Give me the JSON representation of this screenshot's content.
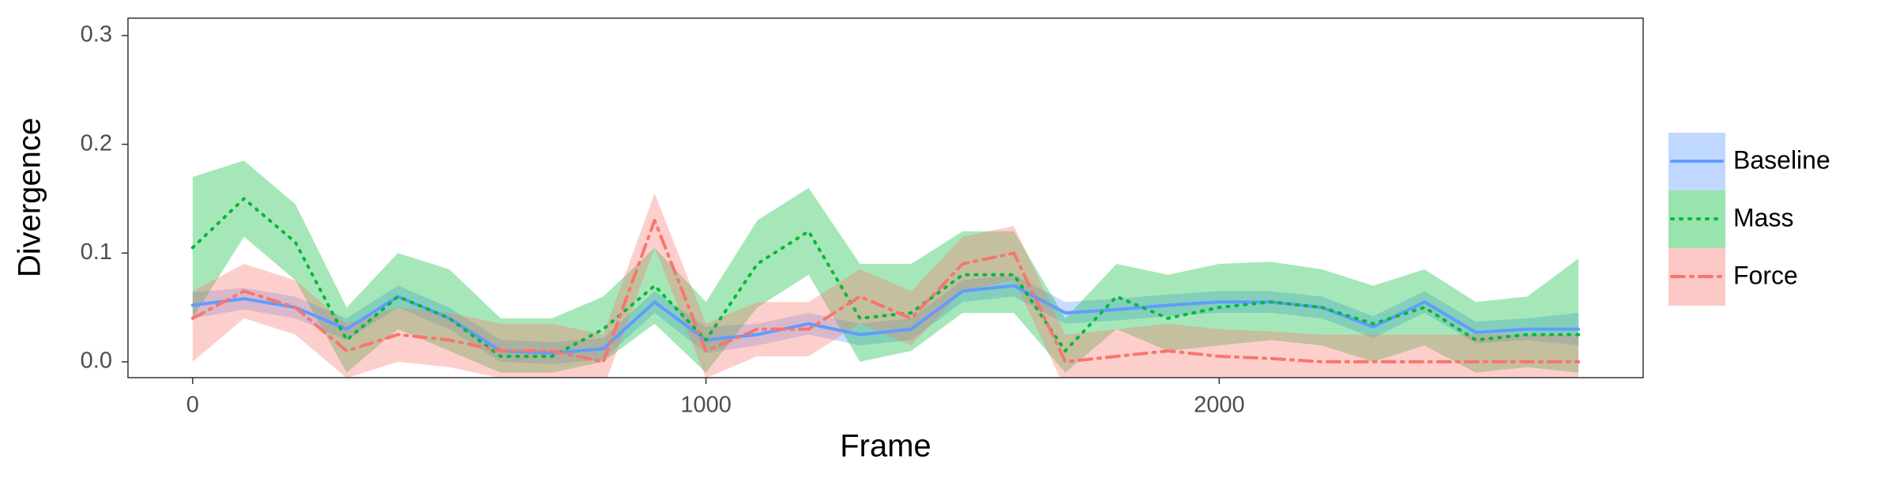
{
  "chart_data": {
    "type": "line",
    "xlabel": "Frame",
    "ylabel": "Divergence",
    "x": [
      0,
      100,
      200,
      300,
      400,
      500,
      600,
      700,
      800,
      900,
      1000,
      1100,
      1200,
      1300,
      1400,
      1500,
      1600,
      1700,
      1800,
      1900,
      2000,
      2100,
      2200,
      2300,
      2400,
      2500,
      2600,
      2700
    ],
    "series": [
      {
        "name": "Baseline",
        "color": "#619CFF",
        "linestyle": "solid",
        "values": [
          0.052,
          0.058,
          0.05,
          0.03,
          0.06,
          0.04,
          0.01,
          0.008,
          0.012,
          0.055,
          0.02,
          0.025,
          0.035,
          0.025,
          0.03,
          0.065,
          0.07,
          0.045,
          0.048,
          0.052,
          0.055,
          0.055,
          0.05,
          0.032,
          0.055,
          0.027,
          0.03,
          0.03
        ],
        "lower": [
          0.04,
          0.048,
          0.04,
          0.02,
          0.05,
          0.03,
          0.0,
          -0.002,
          0.002,
          0.045,
          0.008,
          0.015,
          0.025,
          0.015,
          0.02,
          0.055,
          0.06,
          0.035,
          0.038,
          0.042,
          0.045,
          0.045,
          0.04,
          0.022,
          0.045,
          0.017,
          0.02,
          0.015
        ],
        "upper": [
          0.064,
          0.068,
          0.06,
          0.04,
          0.07,
          0.05,
          0.02,
          0.018,
          0.022,
          0.065,
          0.032,
          0.035,
          0.045,
          0.035,
          0.04,
          0.075,
          0.08,
          0.055,
          0.058,
          0.062,
          0.065,
          0.065,
          0.06,
          0.042,
          0.065,
          0.037,
          0.04,
          0.045
        ]
      },
      {
        "name": "Mass",
        "color": "#00BA38",
        "linestyle": "dotted",
        "values": [
          0.105,
          0.15,
          0.11,
          0.02,
          0.06,
          0.04,
          0.005,
          0.005,
          0.03,
          0.07,
          0.02,
          0.09,
          0.12,
          0.04,
          0.045,
          0.08,
          0.08,
          0.01,
          0.06,
          0.04,
          0.05,
          0.055,
          0.05,
          0.035,
          0.05,
          0.02,
          0.025,
          0.025
        ],
        "lower": [
          0.04,
          0.115,
          0.075,
          -0.01,
          0.03,
          0.01,
          -0.01,
          -0.01,
          0.0,
          0.035,
          -0.01,
          0.05,
          0.08,
          0.0,
          0.01,
          0.045,
          0.045,
          -0.01,
          0.03,
          0.01,
          0.015,
          0.02,
          0.015,
          0.0,
          0.015,
          -0.01,
          -0.005,
          -0.01
        ],
        "upper": [
          0.17,
          0.185,
          0.145,
          0.05,
          0.1,
          0.085,
          0.04,
          0.04,
          0.06,
          0.105,
          0.055,
          0.13,
          0.16,
          0.09,
          0.09,
          0.12,
          0.12,
          0.04,
          0.09,
          0.08,
          0.09,
          0.092,
          0.085,
          0.07,
          0.085,
          0.055,
          0.06,
          0.095
        ]
      },
      {
        "name": "Force",
        "color": "#F8766D",
        "linestyle": "dashdot",
        "values": [
          0.04,
          0.065,
          0.05,
          0.01,
          0.025,
          0.02,
          0.01,
          0.01,
          0.0,
          0.13,
          0.01,
          0.03,
          0.03,
          0.06,
          0.04,
          0.09,
          0.1,
          0.0,
          0.005,
          0.01,
          0.005,
          0.003,
          0.0,
          0.0,
          0.0,
          0.0,
          0.0,
          0.0
        ],
        "lower": [
          0.0,
          0.04,
          0.025,
          -0.015,
          0.0,
          -0.005,
          -0.015,
          -0.015,
          -0.025,
          0.105,
          -0.015,
          0.005,
          0.005,
          0.035,
          0.015,
          0.065,
          0.075,
          -0.025,
          -0.02,
          -0.015,
          -0.02,
          -0.022,
          -0.025,
          -0.025,
          -0.025,
          -0.025,
          -0.025,
          -0.025
        ],
        "upper": [
          0.065,
          0.09,
          0.075,
          0.035,
          0.05,
          0.045,
          0.035,
          0.035,
          0.025,
          0.155,
          0.035,
          0.055,
          0.055,
          0.085,
          0.065,
          0.115,
          0.125,
          0.025,
          0.03,
          0.035,
          0.03,
          0.028,
          0.025,
          0.025,
          0.025,
          0.025,
          0.025,
          0.025
        ]
      }
    ],
    "xlim": [
      -126,
      2826
    ],
    "ylim": [
      -0.0146,
      0.316
    ],
    "xticks": [
      0,
      1000,
      2000
    ],
    "yticks": [
      {
        "value": 0,
        "label": "0.0"
      },
      0.1,
      0.2,
      0.3
    ],
    "grid": false,
    "legend": "right"
  }
}
